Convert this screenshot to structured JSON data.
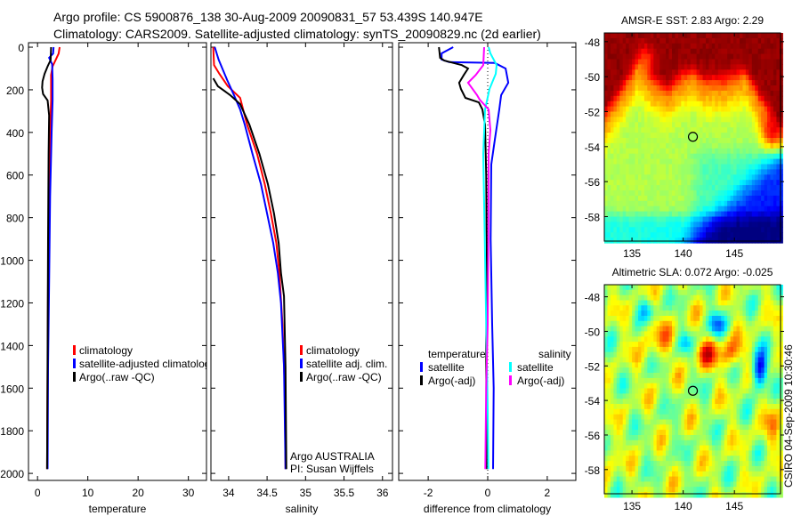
{
  "header": {
    "title_line1": "Argo profile: CS 5900876_138 30-Aug-2009 20090831_57 53.439S 140.947E",
    "title_line2": "Climatology: CARS2009. Satellite-adjusted climatology: synTS_20090829.nc (2d earlier)"
  },
  "timestamp": "CSIRO 04-Sep-2009 10:30:46",
  "colors": {
    "climatology": "#ff0000",
    "satellite": "#0000ff",
    "argo": "#000000",
    "sal_satellite": "#00ffff",
    "sal_argo": "#ff00ff"
  },
  "chart_data": [
    {
      "type": "line",
      "id": "temperature",
      "xlabel": "temperature",
      "ylabel": "",
      "xlim": [
        -1.8,
        33.6
      ],
      "ylim": [
        2033,
        -21
      ],
      "xticks": [
        0,
        10,
        20,
        30
      ],
      "xtick_labels": [
        "0",
        "10",
        "20",
        "30"
      ],
      "yticks": [
        0,
        200,
        400,
        600,
        800,
        1000,
        1200,
        1400,
        1600,
        1800,
        2000
      ],
      "ytick_labels": [
        "0",
        "200",
        "400",
        "600",
        "800",
        "1000",
        "1200",
        "1400",
        "1600",
        "1800",
        "2000"
      ],
      "legend": [
        "climatology",
        "satellite-adjusted climatology",
        "Argo(..raw -QC)"
      ],
      "series": [
        {
          "name": "climatology",
          "color": "#ff0000",
          "points": [
            [
              4.4,
              0
            ],
            [
              4.2,
              30
            ],
            [
              3.6,
              60
            ],
            [
              3.0,
              90
            ],
            [
              2.7,
              130
            ],
            [
              2.7,
              250
            ],
            [
              2.5,
              400
            ],
            [
              2.3,
              700
            ],
            [
              2.1,
              1100
            ],
            [
              2.0,
              1500
            ],
            [
              1.9,
              1980
            ]
          ]
        },
        {
          "name": "satellite-adjusted climatology",
          "color": "#0000ff",
          "points": [
            [
              3.2,
              0
            ],
            [
              3.1,
              30
            ],
            [
              2.3,
              50
            ],
            [
              2.9,
              80
            ],
            [
              3.0,
              150
            ],
            [
              3.0,
              250
            ],
            [
              2.8,
              400
            ],
            [
              2.5,
              700
            ],
            [
              2.3,
              1100
            ],
            [
              2.1,
              1500
            ],
            [
              2.0,
              1980
            ]
          ]
        },
        {
          "name": "Argo(..raw -QC)",
          "color": "#000000",
          "points": [
            [
              2.7,
              0
            ],
            [
              2.6,
              60
            ],
            [
              2.0,
              90
            ],
            [
              1.4,
              125
            ],
            [
              1.0,
              160
            ],
            [
              0.9,
              190
            ],
            [
              1.1,
              220
            ],
            [
              2.0,
              250
            ],
            [
              2.3,
              320
            ],
            [
              2.2,
              500
            ],
            [
              2.1,
              900
            ],
            [
              2.0,
              1400
            ],
            [
              1.9,
              1980
            ]
          ]
        }
      ]
    },
    {
      "type": "line",
      "id": "salinity",
      "xlabel": "salinity",
      "xlim": [
        33.77,
        36.13
      ],
      "ylim": [
        2033,
        -21
      ],
      "xticks": [
        34,
        34.5,
        35,
        35.5,
        36
      ],
      "xtick_labels": [
        "34",
        "34.5",
        "35",
        "35.5",
        "36"
      ],
      "legend": [
        "climatology",
        "satellite adj. clim.",
        "Argo(..raw -QC)"
      ],
      "annotations": [
        "Argo AUSTRALIA",
        "PI: Susan Wijffels"
      ],
      "series": [
        {
          "name": "climatology",
          "color": "#ff0000",
          "points": [
            [
              33.8,
              0
            ],
            [
              33.81,
              84
            ],
            [
              33.88,
              125
            ],
            [
              33.99,
              183
            ],
            [
              34.15,
              238
            ],
            [
              34.24,
              363
            ],
            [
              34.37,
              501
            ],
            [
              34.47,
              643
            ],
            [
              34.55,
              781
            ],
            [
              34.62,
              919
            ],
            [
              34.66,
              1060
            ],
            [
              34.7,
              1300
            ],
            [
              34.73,
              1600
            ],
            [
              34.74,
              1980
            ]
          ]
        },
        {
          "name": "satellite adj. clim.",
          "color": "#0000ff",
          "points": [
            [
              33.82,
              0
            ],
            [
              33.87,
              58
            ],
            [
              33.98,
              154
            ],
            [
              34.07,
              225
            ],
            [
              34.15,
              292
            ],
            [
              34.21,
              363
            ],
            [
              34.31,
              501
            ],
            [
              34.42,
              643
            ],
            [
              34.5,
              781
            ],
            [
              34.58,
              919
            ],
            [
              34.64,
              1060
            ],
            [
              34.68,
              1200
            ],
            [
              34.72,
              1500
            ],
            [
              34.74,
              1980
            ]
          ]
        },
        {
          "name": "Argo(..raw -QC)",
          "color": "#000000",
          "points": [
            [
              33.8,
              146
            ],
            [
              33.86,
              183
            ],
            [
              34.02,
              225
            ],
            [
              34.15,
              267
            ],
            [
              34.27,
              363
            ],
            [
              34.4,
              501
            ],
            [
              34.51,
              643
            ],
            [
              34.59,
              781
            ],
            [
              34.65,
              919
            ],
            [
              34.68,
              1060
            ],
            [
              34.72,
              1169
            ],
            [
              34.74,
              1500
            ],
            [
              34.75,
              1980
            ]
          ]
        }
      ]
    },
    {
      "type": "line",
      "id": "difference",
      "xlabel": "difference from climatology",
      "xlim": [
        -2.99,
        2.96
      ],
      "ylim": [
        2033,
        -21
      ],
      "xticks": [
        -2,
        0,
        2
      ],
      "xtick_labels": [
        "-2",
        "0",
        "2"
      ],
      "legend_headers": [
        "temperature",
        "salinity"
      ],
      "legend": [
        "satellite",
        "Argo(-adj)",
        "satellite",
        "Argo(-adj)"
      ],
      "series": [
        {
          "name": "temperature satellite",
          "color": "#0000ff",
          "points": [
            [
              -1.16,
              0
            ],
            [
              -1.55,
              29
            ],
            [
              -1.55,
              58
            ],
            [
              -1.3,
              70
            ],
            [
              0.24,
              74
            ],
            [
              0.6,
              100
            ],
            [
              0.69,
              167
            ],
            [
              0.45,
              225
            ],
            [
              0.39,
              292
            ],
            [
              0.24,
              434
            ],
            [
              0.12,
              550
            ],
            [
              0.1,
              900
            ],
            [
              0.15,
              1300
            ],
            [
              0.2,
              1600
            ],
            [
              0.18,
              1980
            ]
          ]
        },
        {
          "name": "temperature Argo(-adj)",
          "color": "#000000",
          "points": [
            [
              -1.64,
              0
            ],
            [
              -1.6,
              50
            ],
            [
              -1.46,
              63
            ],
            [
              -0.87,
              84
            ],
            [
              -0.66,
              100
            ],
            [
              -0.8,
              130
            ],
            [
              -0.96,
              167
            ],
            [
              -0.9,
              196
            ],
            [
              -0.75,
              238
            ],
            [
              -0.3,
              259
            ],
            [
              -0.18,
              292
            ],
            [
              -0.09,
              363
            ],
            [
              -0.05,
              600
            ],
            [
              -0.03,
              1000
            ],
            [
              -0.05,
              1400
            ],
            [
              -0.04,
              1980
            ]
          ]
        },
        {
          "name": "salinity satellite",
          "color": "#00ffff",
          "points": [
            [
              0.03,
              0
            ],
            [
              0.09,
              29
            ],
            [
              0.3,
              84
            ],
            [
              0.27,
              125
            ],
            [
              0.06,
              196
            ],
            [
              -0.09,
              292
            ],
            [
              -0.15,
              501
            ],
            [
              -0.1,
              900
            ],
            [
              -0.05,
              1300
            ],
            [
              0.0,
              1700
            ],
            [
              0.02,
              1980
            ]
          ]
        },
        {
          "name": "salinity Argo(-adj)",
          "color": "#ff00ff",
          "points": [
            [
              -0.12,
              0
            ],
            [
              -0.15,
              84
            ],
            [
              -0.4,
              130
            ],
            [
              -0.66,
              167
            ],
            [
              -0.36,
              225
            ],
            [
              -0.27,
              246
            ],
            [
              0.03,
              292
            ],
            [
              0.09,
              390
            ],
            [
              0.03,
              501
            ],
            [
              0.02,
              900
            ],
            [
              0.0,
              1300
            ],
            [
              -0.05,
              1600
            ],
            [
              -0.08,
              1980
            ]
          ]
        }
      ]
    },
    {
      "type": "heatmap",
      "id": "sst-map",
      "title": "AMSR-E SST: 2.83 Argo: 2.29",
      "xlim": [
        132.3,
        149.5
      ],
      "ylim": [
        -59.4,
        -47.5
      ],
      "xtick_labels": [
        "135",
        "140",
        "145"
      ],
      "xticks": [
        135,
        140,
        145
      ],
      "yticks": [
        -48,
        -50,
        -52,
        -54,
        -56,
        -58
      ],
      "ytick_labels": [
        "-48",
        "-50",
        "-52",
        "-54",
        "-56",
        "-58"
      ],
      "marker": {
        "lon": 140.947,
        "lat": -53.439
      }
    },
    {
      "type": "heatmap",
      "id": "sla-map",
      "title": "Altimetric SLA: 0.072 Argo: -0.025",
      "xlim": [
        132.3,
        149.5
      ],
      "ylim": [
        -59.4,
        -47.3
      ],
      "xtick_labels": [
        "135",
        "140",
        "145"
      ],
      "xticks": [
        135,
        140,
        145
      ],
      "yticks": [
        -48,
        -50,
        -52,
        -54,
        -56,
        -58
      ],
      "ytick_labels": [
        "-48",
        "-50",
        "-52",
        "-54",
        "-56",
        "-58"
      ],
      "marker": {
        "lon": 140.947,
        "lat": -53.439
      }
    }
  ]
}
